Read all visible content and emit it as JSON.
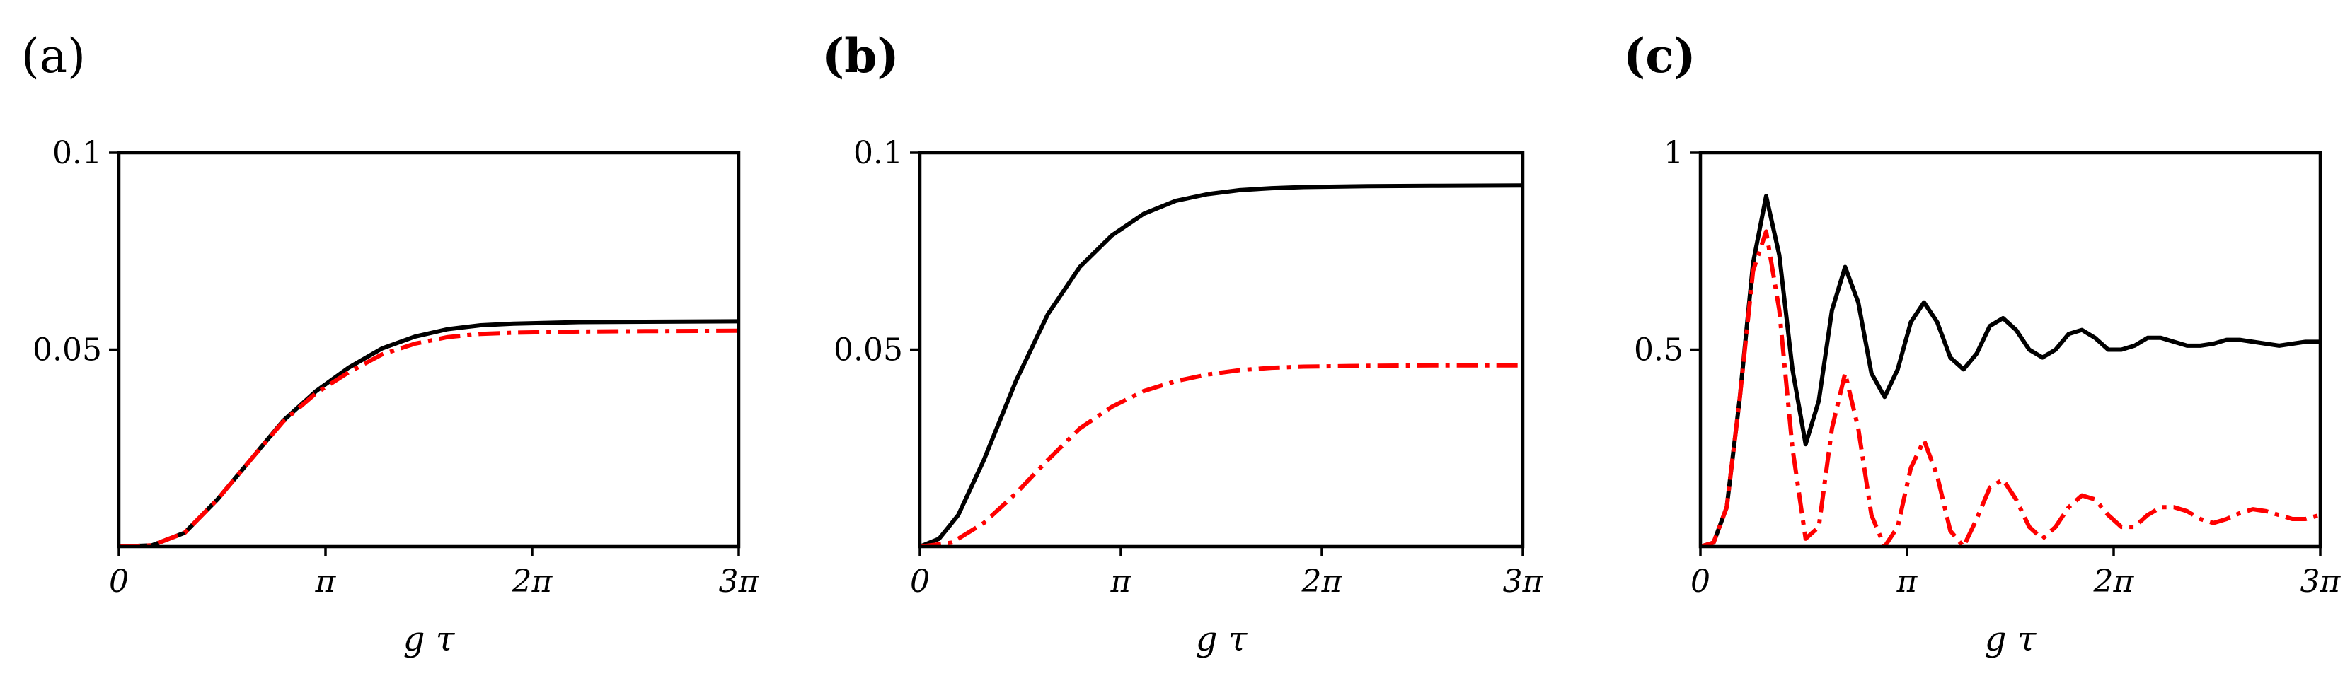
{
  "figure": {
    "xlabel": "g τ",
    "xticks": [
      "0",
      "π",
      "2π",
      "3π"
    ]
  },
  "chart_data": [
    {
      "type": "line",
      "panel_label": "(a)",
      "panel_bold": false,
      "title": "",
      "xlabel": "g τ",
      "ylabel": "",
      "xlim": [
        0,
        9.42478
      ],
      "ylim": [
        0,
        0.1
      ],
      "xtick_values": [
        0,
        3.14159,
        6.28319,
        9.42478
      ],
      "xtick_labels": [
        "0",
        "π",
        "2π",
        "3π"
      ],
      "ytick_values": [
        0.05,
        0.1
      ],
      "ytick_labels": [
        "0.05",
        "0.1"
      ],
      "grid": false,
      "series": [
        {
          "style": "solid",
          "color": "#000000",
          "x": [
            0,
            0.5,
            1.0,
            1.5,
            2.0,
            2.5,
            3.0,
            3.5,
            4.0,
            4.5,
            5.0,
            5.5,
            6.0,
            7.0,
            8.0,
            9.42
          ],
          "y": [
            0,
            0.0003,
            0.0035,
            0.012,
            0.022,
            0.032,
            0.0395,
            0.0455,
            0.0503,
            0.0533,
            0.0552,
            0.0562,
            0.0566,
            0.057,
            0.0571,
            0.0572
          ]
        },
        {
          "style": "dashdot",
          "color": "#ff0000",
          "x": [
            0,
            0.5,
            1.0,
            1.5,
            2.0,
            2.5,
            3.0,
            3.5,
            4.0,
            4.5,
            5.0,
            5.5,
            6.0,
            7.0,
            8.0,
            9.42
          ],
          "y": [
            0,
            0.0003,
            0.0035,
            0.012,
            0.022,
            0.0318,
            0.039,
            0.0443,
            0.0488,
            0.0515,
            0.0532,
            0.054,
            0.0543,
            0.0546,
            0.0547,
            0.0548
          ]
        }
      ]
    },
    {
      "type": "line",
      "panel_label": "(b)",
      "panel_bold": true,
      "title": "",
      "xlabel": "g τ",
      "ylabel": "",
      "xlim": [
        0,
        9.42478
      ],
      "ylim": [
        0,
        0.1
      ],
      "xtick_values": [
        0,
        3.14159,
        6.28319,
        9.42478
      ],
      "xtick_labels": [
        "0",
        "π",
        "2π",
        "3π"
      ],
      "ytick_values": [
        0.05,
        0.1
      ],
      "ytick_labels": [
        "0.05",
        "0.1"
      ],
      "grid": false,
      "series": [
        {
          "style": "solid",
          "color": "#000000",
          "x": [
            0,
            0.3,
            0.6,
            1.0,
            1.5,
            2.0,
            2.5,
            3.0,
            3.5,
            4.0,
            4.5,
            5.0,
            5.5,
            6.0,
            7.0,
            8.0,
            9.42
          ],
          "y": [
            0,
            0.002,
            0.008,
            0.022,
            0.042,
            0.059,
            0.071,
            0.079,
            0.0845,
            0.0878,
            0.0895,
            0.0905,
            0.091,
            0.0913,
            0.0915,
            0.0916,
            0.0917
          ]
        },
        {
          "style": "dashdot",
          "color": "#ff0000",
          "x": [
            0,
            0.5,
            1.0,
            1.5,
            2.0,
            2.5,
            3.0,
            3.5,
            4.0,
            4.5,
            5.0,
            5.5,
            6.0,
            7.0,
            8.0,
            9.42
          ],
          "y": [
            0,
            0.001,
            0.006,
            0.0135,
            0.022,
            0.03,
            0.0355,
            0.0395,
            0.042,
            0.0437,
            0.0448,
            0.0454,
            0.0457,
            0.0459,
            0.046,
            0.046
          ]
        }
      ]
    },
    {
      "type": "line",
      "panel_label": "(c)",
      "panel_bold": true,
      "title": "",
      "xlabel": "g τ",
      "ylabel": "",
      "xlim": [
        0,
        9.42478
      ],
      "ylim": [
        0,
        1
      ],
      "xtick_values": [
        0,
        3.14159,
        6.28319,
        9.42478
      ],
      "xtick_labels": [
        "0",
        "π",
        "2π",
        "3π"
      ],
      "ytick_values": [
        0.5,
        1
      ],
      "ytick_labels": [
        "0.5",
        "1"
      ],
      "grid": false,
      "series": [
        {
          "style": "solid",
          "color": "#000000",
          "x": [
            0,
            0.2,
            0.4,
            0.6,
            0.8,
            1.0,
            1.2,
            1.4,
            1.6,
            1.8,
            2.0,
            2.2,
            2.4,
            2.6,
            2.8,
            3.0,
            3.2,
            3.4,
            3.6,
            3.8,
            4.0,
            4.2,
            4.4,
            4.6,
            4.8,
            5.0,
            5.2,
            5.4,
            5.6,
            5.8,
            6.0,
            6.2,
            6.4,
            6.6,
            6.8,
            7.0,
            7.2,
            7.4,
            7.6,
            7.8,
            8.0,
            8.2,
            8.4,
            8.6,
            8.8,
            9.0,
            9.2,
            9.42
          ],
          "y": [
            0,
            0.01,
            0.1,
            0.38,
            0.72,
            0.89,
            0.74,
            0.45,
            0.26,
            0.37,
            0.6,
            0.71,
            0.62,
            0.44,
            0.38,
            0.45,
            0.57,
            0.62,
            0.57,
            0.48,
            0.45,
            0.49,
            0.56,
            0.58,
            0.55,
            0.5,
            0.48,
            0.5,
            0.54,
            0.55,
            0.53,
            0.5,
            0.5,
            0.51,
            0.53,
            0.53,
            0.52,
            0.51,
            0.51,
            0.515,
            0.525,
            0.525,
            0.52,
            0.515,
            0.51,
            0.515,
            0.52,
            0.52
          ]
        },
        {
          "style": "dashdot",
          "color": "#ff0000",
          "x": [
            0,
            0.2,
            0.4,
            0.6,
            0.8,
            1.0,
            1.2,
            1.4,
            1.6,
            1.8,
            2.0,
            2.2,
            2.4,
            2.6,
            2.8,
            3.0,
            3.2,
            3.4,
            3.6,
            3.8,
            4.0,
            4.2,
            4.4,
            4.6,
            4.8,
            5.0,
            5.2,
            5.4,
            5.6,
            5.8,
            6.0,
            6.2,
            6.4,
            6.6,
            6.8,
            7.0,
            7.2,
            7.4,
            7.6,
            7.8,
            8.0,
            8.2,
            8.4,
            8.6,
            8.8,
            9.0,
            9.2,
            9.42
          ],
          "y": [
            0,
            0.01,
            0.1,
            0.38,
            0.7,
            0.8,
            0.6,
            0.25,
            0.02,
            0.05,
            0.3,
            0.44,
            0.3,
            0.08,
            0.0,
            0.05,
            0.2,
            0.27,
            0.18,
            0.04,
            0.0,
            0.07,
            0.15,
            0.17,
            0.12,
            0.05,
            0.02,
            0.05,
            0.1,
            0.13,
            0.12,
            0.08,
            0.05,
            0.05,
            0.08,
            0.1,
            0.1,
            0.09,
            0.07,
            0.06,
            0.07,
            0.085,
            0.095,
            0.09,
            0.08,
            0.07,
            0.07,
            0.08
          ]
        }
      ]
    }
  ]
}
